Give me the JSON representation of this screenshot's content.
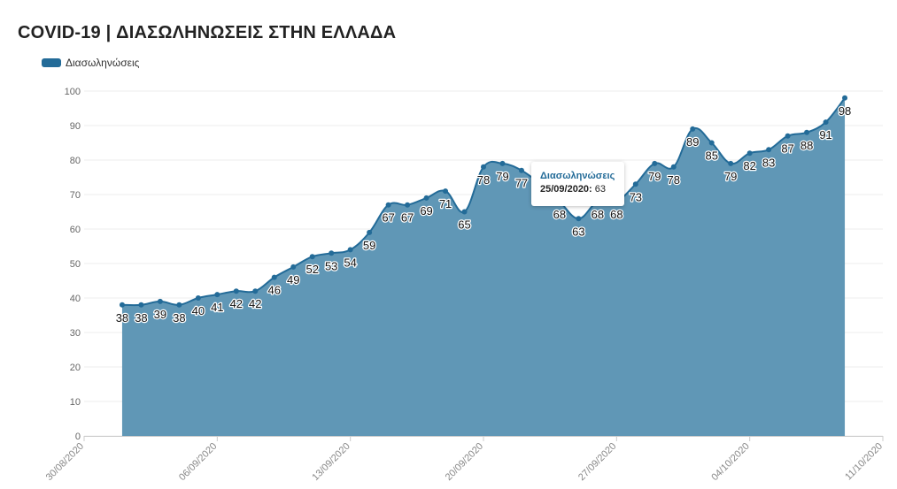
{
  "title": "COVID-19 | ΔΙΑΣΩΛΗΝΩΣΕΙΣ ΣΤΗΝ ΕΛΛΑΔΑ",
  "colors": {
    "series": "#236b98",
    "area": "#6097b6",
    "grid": "#ececec"
  },
  "tooltip": {
    "series": "Διασωληνώσεις",
    "date": "25/09/2020:",
    "value": "63"
  },
  "chart_data": {
    "type": "area",
    "title": "COVID-19 | ΔΙΑΣΩΛΗΝΩΣΕΙΣ ΣΤΗΝ ΕΛΛΑΔΑ",
    "series": [
      {
        "name": "Διασωληνώσεις",
        "x": [
          "01/09/2020",
          "02/09/2020",
          "03/09/2020",
          "04/09/2020",
          "05/09/2020",
          "06/09/2020",
          "07/09/2020",
          "08/09/2020",
          "09/09/2020",
          "10/09/2020",
          "11/09/2020",
          "12/09/2020",
          "13/09/2020",
          "14/09/2020",
          "15/09/2020",
          "16/09/2020",
          "17/09/2020",
          "18/09/2020",
          "19/09/2020",
          "20/09/2020",
          "21/09/2020",
          "22/09/2020",
          "23/09/2020",
          "24/09/2020",
          "25/09/2020",
          "26/09/2020",
          "27/09/2020",
          "28/09/2020",
          "29/09/2020",
          "30/09/2020",
          "01/10/2020",
          "02/10/2020",
          "03/10/2020",
          "04/10/2020",
          "05/10/2020",
          "06/10/2020",
          "07/10/2020",
          "08/10/2020",
          "09/10/2020"
        ],
        "values": [
          38,
          38,
          39,
          38,
          40,
          41,
          42,
          42,
          46,
          49,
          52,
          53,
          54,
          59,
          67,
          67,
          69,
          71,
          65,
          78,
          79,
          77,
          73,
          68,
          63,
          68,
          68,
          73,
          79,
          78,
          89,
          85,
          79,
          82,
          83,
          87,
          88,
          91,
          98
        ]
      }
    ],
    "ylim": [
      0,
      100
    ],
    "yticks": [
      "0",
      "10",
      "20",
      "30",
      "40",
      "50",
      "60",
      "70",
      "80",
      "90",
      "100"
    ],
    "xticks": [
      "30/08/2020",
      "06/09/2020",
      "13/09/2020",
      "20/09/2020",
      "27/09/2020",
      "04/10/2020",
      "11/10/2020"
    ],
    "grid": true,
    "legend": "top-left"
  }
}
